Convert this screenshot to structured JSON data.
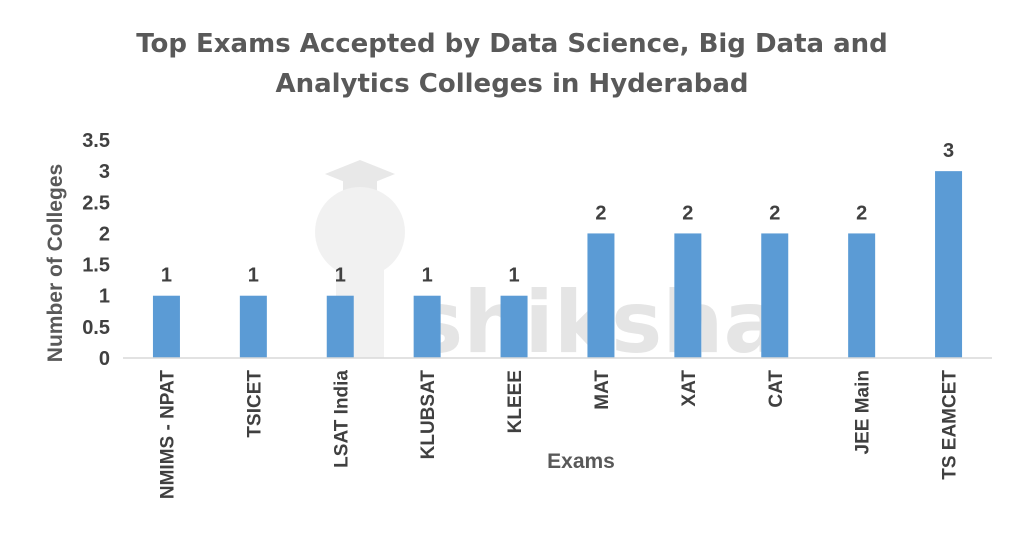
{
  "watermark": "shiksha",
  "chart_data": {
    "type": "bar",
    "title_lines": [
      "Top Exams Accepted by Data Science, Big Data and",
      "Analytics Colleges in Hyderabad"
    ],
    "xlabel": "Exams",
    "ylabel": "Number of Colleges",
    "categories": [
      "NMIMS - NPAT",
      "TSICET",
      "LSAT India",
      "KLUBSAT",
      "KLEEE",
      "MAT",
      "XAT",
      "CAT",
      "JEE Main",
      "TS EAMCET"
    ],
    "values": [
      1,
      1,
      1,
      1,
      1,
      2,
      2,
      2,
      2,
      3
    ],
    "data_labels": [
      "1",
      "1",
      "1",
      "1",
      "1",
      "2",
      "2",
      "2",
      "2",
      "3"
    ],
    "yticks": [
      "0",
      "0.5",
      "1",
      "1.5",
      "2",
      "2.5",
      "3",
      "3.5"
    ],
    "ylim": [
      0,
      3.5
    ],
    "grid": false,
    "bar_color": "#5b9bd5"
  }
}
